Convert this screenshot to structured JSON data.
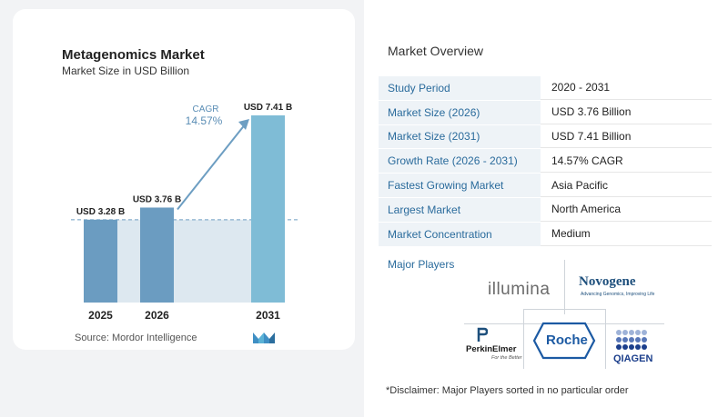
{
  "chart": {
    "title": "Metagenomics Market",
    "subtitle": "Market Size in USD Billion",
    "source": "Source:  Mordor Intelligence",
    "cagr_label": "CAGR",
    "cagr_value": "14.57%"
  },
  "chart_data": {
    "type": "bar",
    "categories": [
      "2025",
      "2026",
      "2031"
    ],
    "values": [
      3.28,
      3.76,
      7.41
    ],
    "value_labels": [
      "USD 3.28 B",
      "USD 3.76 B",
      "USD 7.41 B"
    ],
    "title": "Metagenomics Market",
    "subtitle": "Market Size in USD Billion",
    "xlabel": "",
    "ylabel": "",
    "annotation": "CAGR 14.57%",
    "colors": [
      "#6d9ec2",
      "#6d9ec2",
      "#79b4d2"
    ]
  },
  "overview": {
    "title": "Market Overview",
    "rows": [
      {
        "label": "Study Period",
        "value": "2020 - 2031"
      },
      {
        "label": "Market Size (2026)",
        "value": "USD 3.76 Billion"
      },
      {
        "label": "Market Size (2031)",
        "value": "USD 7.41 Billion"
      },
      {
        "label": "Growth Rate (2026 - 2031)",
        "value": "14.57% CAGR"
      },
      {
        "label": "Fastest Growing Market",
        "value": "Asia Pacific"
      },
      {
        "label": "Largest Market",
        "value": "North America"
      },
      {
        "label": "Market Concentration",
        "value": "Medium"
      }
    ],
    "players_title": "Major Players",
    "players": {
      "illumina": "illumina",
      "novogene": "Novogene",
      "novogene_tagline": "Advancing Genomics, Improving Life",
      "perkinelmer": "PerkinElmer",
      "perkinelmer_tagline": "For the Better",
      "roche": "Roche",
      "qiagen": "QIAGEN"
    },
    "disclaimer": "*Disclaimer: Major Players sorted in no particular order"
  }
}
